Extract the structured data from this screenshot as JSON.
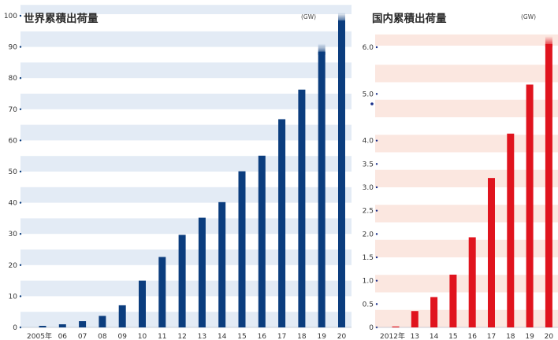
{
  "chart_data": [
    {
      "type": "bar",
      "title": "世界累積出荷量",
      "unit": "(GW)",
      "categories": [
        "2005年",
        "06",
        "07",
        "08",
        "09",
        "10",
        "11",
        "12",
        "13",
        "14",
        "15",
        "16",
        "17",
        "18",
        "19",
        "20"
      ],
      "values": [
        0.5,
        1.0,
        2.0,
        3.7,
        7.1,
        15.0,
        22.6,
        29.7,
        35.2,
        40.2,
        50.1,
        55.1,
        66.8,
        76.3,
        91.0,
        101.0
      ],
      "yticks": [
        0,
        10,
        20,
        30,
        40,
        50,
        60,
        70,
        80,
        90,
        100
      ],
      "ylim": [
        0,
        100
      ],
      "grid": "horizontal bands",
      "colors": {
        "bar": "#0b3d7e",
        "band": "#e3ebf5",
        "tick_dot": "#0b3d7e"
      }
    },
    {
      "type": "bar",
      "title": "国内累積出荷量",
      "unit": "(GW)",
      "categories": [
        "2012年",
        "13",
        "14",
        "15",
        "16",
        "17",
        "18",
        "19",
        "20"
      ],
      "values": [
        0.02,
        0.35,
        0.65,
        1.13,
        1.93,
        3.2,
        4.15,
        5.2,
        6.3
      ],
      "yticks": [
        "0",
        "0.5",
        "1.0",
        "1.5",
        "2.0",
        "2.5",
        "3.0",
        "3.5",
        "4.0",
        "5.0",
        "6.0"
      ],
      "ylim": [
        0,
        6.0
      ],
      "grid": "horizontal bands",
      "colors": {
        "bar": "#e0141e",
        "band": "#fbe7e0",
        "tick_dot": "#1a2f8a"
      }
    }
  ]
}
